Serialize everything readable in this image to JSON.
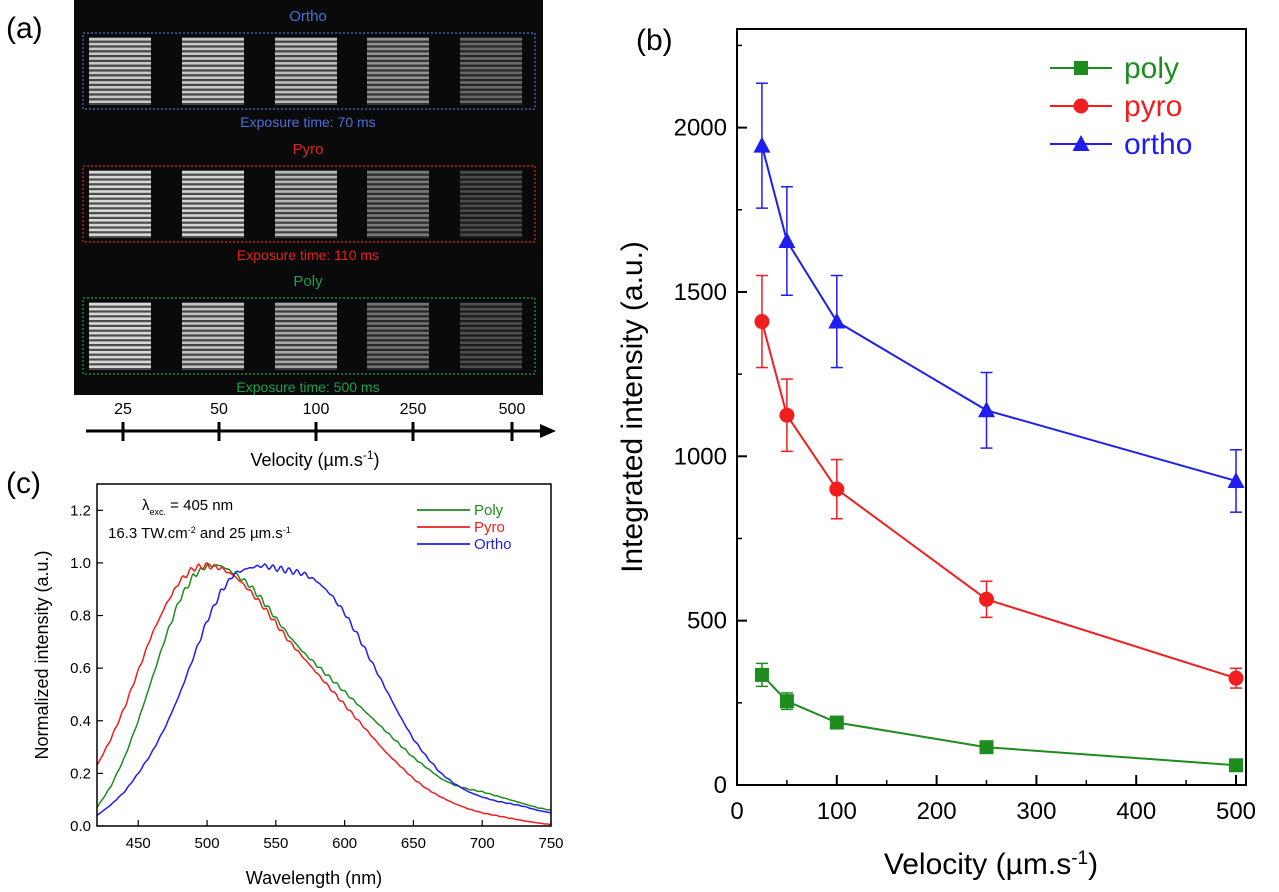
{
  "panel_labels": {
    "a": "(a)",
    "b": "(b)",
    "c": "(c)"
  },
  "panel_a": {
    "groups": [
      {
        "name": "Ortho",
        "exposure": "Exposure time: 70 ms",
        "color": "#4d6fd6",
        "brightness": [
          0.85,
          0.85,
          0.8,
          0.62,
          0.45
        ]
      },
      {
        "name": "Pyro",
        "exposure": "Exposure time: 110 ms",
        "color": "#e8201e",
        "brightness": [
          0.92,
          0.9,
          0.78,
          0.52,
          0.32
        ]
      },
      {
        "name": "Poly",
        "exposure": "Exposure time: 500 ms",
        "color": "#1ea050",
        "brightness": [
          0.92,
          0.82,
          0.72,
          0.48,
          0.33
        ]
      }
    ],
    "velocity_ticks": [
      "25",
      "50",
      "100",
      "250",
      "500"
    ],
    "axis_label": "Velocity (µm.s",
    "axis_label_sup": "-1",
    "axis_label_end": ")"
  },
  "chart_data": [
    {
      "panel": "b",
      "type": "line",
      "xlabel": "Velocity (µm.s",
      "xlabel_sup": "-1",
      "xlabel_end": ")",
      "ylabel": "Integrated intensity (a.u.)",
      "xlim": [
        0,
        510
      ],
      "ylim": [
        0,
        2300
      ],
      "xticks": [
        0,
        100,
        200,
        300,
        400,
        500
      ],
      "yticks": [
        0,
        500,
        1000,
        1500,
        2000
      ],
      "legend_position": "top-right",
      "series": [
        {
          "name": "poly",
          "color": "#1e8c1e",
          "marker": "square",
          "x": [
            25,
            50,
            100,
            250,
            500
          ],
          "y": [
            335,
            255,
            190,
            115,
            60
          ],
          "err": [
            35,
            25,
            15,
            15,
            10
          ]
        },
        {
          "name": "pyro",
          "color": "#f01e1e",
          "marker": "circle",
          "x": [
            25,
            50,
            100,
            250,
            500
          ],
          "y": [
            1410,
            1125,
            900,
            565,
            325
          ],
          "err": [
            140,
            110,
            90,
            55,
            30
          ]
        },
        {
          "name": "ortho",
          "color": "#1e1ef0",
          "marker": "triangle",
          "x": [
            25,
            50,
            100,
            250,
            500
          ],
          "y": [
            1945,
            1655,
            1410,
            1140,
            925
          ],
          "err": [
            190,
            165,
            140,
            115,
            95
          ]
        }
      ]
    },
    {
      "panel": "c",
      "type": "line",
      "xlabel": "Wavelength (nm)",
      "ylabel": "Normalized intensity (a.u.)",
      "xlim": [
        420,
        750
      ],
      "ylim": [
        0.0,
        1.3
      ],
      "xticks": [
        450,
        500,
        550,
        600,
        650,
        700,
        750
      ],
      "yticks": [
        0.0,
        0.2,
        0.4,
        0.6,
        0.8,
        1.0,
        1.2
      ],
      "legend_position": "top-right",
      "annotation_line1": "λ",
      "annotation_line1_sub": "exc.",
      "annotation_line1_end": " = 405 nm",
      "annotation_line2": "16.3 TW.cm",
      "annotation_line2_sup": "-2",
      "annotation_line2_mid": " and 25 µm.s",
      "annotation_line2_sup2": "-1",
      "series": [
        {
          "name": "Poly",
          "color": "#1e8c1e",
          "x": [
            420,
            430,
            440,
            450,
            460,
            470,
            480,
            490,
            500,
            510,
            520,
            530,
            540,
            550,
            560,
            570,
            580,
            590,
            600,
            610,
            620,
            630,
            640,
            650,
            660,
            670,
            680,
            690,
            700,
            710,
            720,
            730,
            740,
            750
          ],
          "y": [
            0.07,
            0.15,
            0.26,
            0.4,
            0.56,
            0.72,
            0.86,
            0.95,
            0.99,
            0.99,
            0.96,
            0.92,
            0.86,
            0.79,
            0.72,
            0.66,
            0.61,
            0.56,
            0.51,
            0.46,
            0.41,
            0.36,
            0.31,
            0.26,
            0.22,
            0.18,
            0.155,
            0.14,
            0.13,
            0.115,
            0.1,
            0.085,
            0.07,
            0.06
          ]
        },
        {
          "name": "Pyro",
          "color": "#f01e1e",
          "x": [
            420,
            430,
            440,
            450,
            460,
            470,
            480,
            490,
            500,
            510,
            520,
            530,
            540,
            550,
            560,
            570,
            580,
            590,
            600,
            610,
            620,
            630,
            640,
            650,
            660,
            670,
            680,
            690,
            700,
            710,
            720,
            730,
            740,
            750
          ],
          "y": [
            0.23,
            0.33,
            0.45,
            0.59,
            0.73,
            0.84,
            0.93,
            0.98,
            0.99,
            0.98,
            0.95,
            0.9,
            0.84,
            0.77,
            0.7,
            0.64,
            0.58,
            0.52,
            0.46,
            0.4,
            0.34,
            0.28,
            0.23,
            0.18,
            0.14,
            0.11,
            0.085,
            0.065,
            0.05,
            0.04,
            0.03,
            0.02,
            0.012,
            0.005
          ]
        },
        {
          "name": "Ortho",
          "color": "#1e1ef0",
          "x": [
            420,
            430,
            440,
            450,
            460,
            470,
            480,
            490,
            500,
            510,
            520,
            530,
            540,
            550,
            560,
            570,
            580,
            590,
            600,
            610,
            620,
            630,
            640,
            650,
            660,
            670,
            680,
            690,
            700,
            710,
            720,
            730,
            740,
            750
          ],
          "y": [
            0.04,
            0.08,
            0.13,
            0.2,
            0.28,
            0.38,
            0.5,
            0.64,
            0.78,
            0.89,
            0.96,
            0.98,
            0.99,
            0.98,
            0.97,
            0.96,
            0.93,
            0.88,
            0.81,
            0.72,
            0.62,
            0.52,
            0.42,
            0.33,
            0.26,
            0.2,
            0.16,
            0.13,
            0.11,
            0.095,
            0.085,
            0.075,
            0.06,
            0.05
          ]
        }
      ]
    }
  ]
}
